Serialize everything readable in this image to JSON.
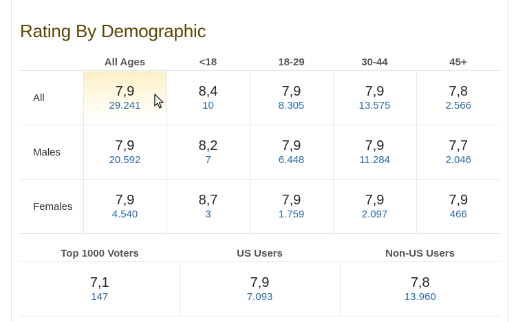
{
  "title": "Rating By Demographic",
  "columns": [
    "All Ages",
    "<18",
    "18-29",
    "30-44",
    "45+"
  ],
  "rows": [
    {
      "label": "All",
      "cells": [
        {
          "rating": "7,9",
          "votes": "29.241"
        },
        {
          "rating": "8,4",
          "votes": "10"
        },
        {
          "rating": "7,9",
          "votes": "8.305"
        },
        {
          "rating": "7,9",
          "votes": "13.575"
        },
        {
          "rating": "7,8",
          "votes": "2.566"
        }
      ]
    },
    {
      "label": "Males",
      "cells": [
        {
          "rating": "7,9",
          "votes": "20.592"
        },
        {
          "rating": "8,2",
          "votes": "7"
        },
        {
          "rating": "7,9",
          "votes": "6.448"
        },
        {
          "rating": "7,9",
          "votes": "11.284"
        },
        {
          "rating": "7,7",
          "votes": "2.046"
        }
      ]
    },
    {
      "label": "Females",
      "cells": [
        {
          "rating": "7,9",
          "votes": "4.540"
        },
        {
          "rating": "8,7",
          "votes": "3"
        },
        {
          "rating": "7,9",
          "votes": "1.759"
        },
        {
          "rating": "7,9",
          "votes": "2.097"
        },
        {
          "rating": "7,9",
          "votes": "466"
        }
      ]
    }
  ],
  "voter_groups": {
    "headers": [
      "Top 1000 Voters",
      "US Users",
      "Non-US Users"
    ],
    "cells": [
      {
        "rating": "7,1",
        "votes": "147"
      },
      {
        "rating": "7,9",
        "votes": "7.093"
      },
      {
        "rating": "7,8",
        "votes": "13.960"
      }
    ]
  },
  "colors": {
    "title": "#5c4400",
    "votes_link": "#2b6aa6",
    "highlight": "#fdf0c6",
    "border": "#e6e6e6"
  },
  "icons": {
    "cursor": "mouse-pointer-icon"
  }
}
